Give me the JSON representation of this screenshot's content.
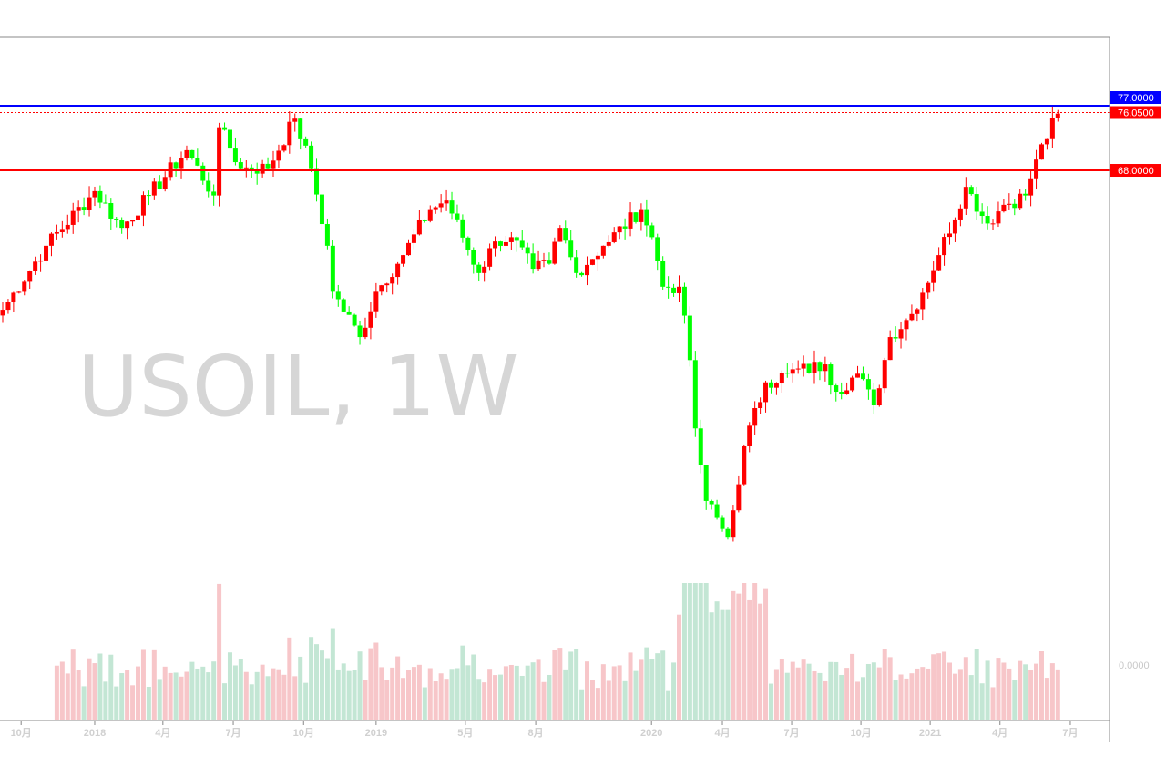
{
  "chart_data": {
    "type": "candlestick",
    "symbol_watermark": "USOIL, 1W",
    "timeframe": "weekly",
    "price_range": [
      15,
      82
    ],
    "key_closes_by_week_index": [
      [
        0,
        48.6
      ],
      [
        8,
        57.5
      ],
      [
        17,
        65.1
      ],
      [
        22,
        60.0
      ],
      [
        27,
        64.5
      ],
      [
        34,
        70.8
      ],
      [
        39,
        64.5
      ],
      [
        40,
        74.0
      ],
      [
        44,
        68.3
      ],
      [
        49,
        68.3
      ],
      [
        54,
        75.2
      ],
      [
        57,
        68.3
      ],
      [
        60,
        57.5
      ],
      [
        61,
        51.1
      ],
      [
        66,
        44.8
      ],
      [
        69,
        51.1
      ],
      [
        74,
        56.2
      ],
      [
        79,
        62.6
      ],
      [
        82,
        63.8
      ],
      [
        88,
        53.7
      ],
      [
        91,
        58.1
      ],
      [
        94,
        58.7
      ],
      [
        98,
        54.3
      ],
      [
        101,
        55.0
      ],
      [
        103,
        60.0
      ],
      [
        106,
        53.7
      ],
      [
        111,
        57.5
      ],
      [
        118,
        62.6
      ],
      [
        120,
        58.7
      ],
      [
        122,
        51.8
      ],
      [
        125,
        51.8
      ],
      [
        127,
        41.6
      ],
      [
        128,
        32.1
      ],
      [
        130,
        22.0
      ],
      [
        134,
        16.9
      ],
      [
        135,
        20.7
      ],
      [
        137,
        29.6
      ],
      [
        141,
        38.5
      ],
      [
        145,
        39.7
      ],
      [
        152,
        41.0
      ],
      [
        154,
        37.2
      ],
      [
        158,
        39.7
      ],
      [
        161,
        35.3
      ],
      [
        164,
        44.8
      ],
      [
        168,
        48.0
      ],
      [
        173,
        56.2
      ],
      [
        178,
        65.7
      ],
      [
        182,
        60.6
      ],
      [
        185,
        63.2
      ],
      [
        189,
        64.5
      ],
      [
        191,
        69.5
      ],
      [
        195,
        75.9
      ]
    ],
    "x_ticks": [
      {
        "week": 3.4,
        "label": "10月"
      },
      {
        "week": 17,
        "label": "2018"
      },
      {
        "week": 29.6,
        "label": "4月"
      },
      {
        "week": 42.6,
        "label": "7月"
      },
      {
        "week": 55.6,
        "label": "10月"
      },
      {
        "week": 69,
        "label": "2019"
      },
      {
        "week": 85.5,
        "label": "5月"
      },
      {
        "week": 98.5,
        "label": "8月"
      },
      {
        "week": 119.9,
        "label": "2020"
      },
      {
        "week": 133,
        "label": "4月"
      },
      {
        "week": 145.8,
        "label": "7月"
      },
      {
        "week": 158.6,
        "label": "10月"
      },
      {
        "week": 171.4,
        "label": "2021"
      },
      {
        "week": 184.3,
        "label": "4月"
      },
      {
        "week": 197.3,
        "label": "7月"
      }
    ],
    "horizontal_lines": [
      {
        "price": 77.0,
        "label": "77.0000",
        "color": "#0000ff",
        "style": "solid"
      },
      {
        "price": 76.05,
        "label": "76.0500",
        "color": "#ff0000",
        "style": "dotted"
      },
      {
        "price": 68.0,
        "label": "68.0000",
        "color": "#ff0000",
        "style": "solid"
      }
    ],
    "volume_axis_label": "0.0000",
    "colors": {
      "up": "#ff0000",
      "down": "#00ff00",
      "vol_up": "#f7c6c9",
      "vol_down": "#c3e6d4",
      "axis": "#808080",
      "tick_text": "#d0d0d0"
    }
  }
}
